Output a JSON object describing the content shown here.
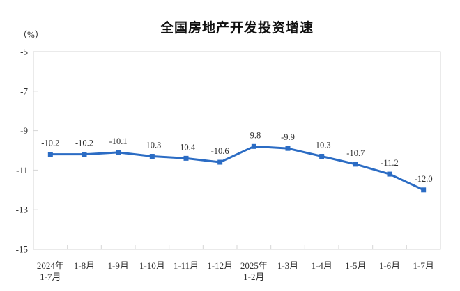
{
  "chart_data": {
    "type": "line",
    "title": "全国房地产开发投资增速",
    "unit_label": "（%）",
    "categories": [
      "2024年\n1-7月",
      "1-8月",
      "1-9月",
      "1-10月",
      "1-11月",
      "1-12月",
      "2025年\n1-2月",
      "1-3月",
      "1-4月",
      "1-5月",
      "1-6月",
      "1-7月"
    ],
    "values": [
      -10.2,
      -10.2,
      -10.1,
      -10.3,
      -10.4,
      -10.6,
      -9.8,
      -9.9,
      -10.3,
      -10.7,
      -11.2,
      -12.0
    ],
    "data_labels": [
      "-10.2",
      "-10.2",
      "-10.1",
      "-10.3",
      "-10.4",
      "-10.6",
      "-9.8",
      "-9.9",
      "-10.3",
      "-10.7",
      "-11.2",
      "-12.0"
    ],
    "ylim": [
      -15,
      -5
    ],
    "y_ticks": [
      -5,
      -7,
      -9,
      -11,
      -13,
      -15
    ],
    "y_tick_labels": [
      "-5",
      "-7",
      "-9",
      "-11",
      "-13",
      "-15"
    ],
    "grid": false,
    "legend": "none",
    "marker": "square",
    "colors": {
      "line": "#2B6CC4",
      "marker": "#2B6CC4",
      "axis": "#D6D6D6",
      "text": "#303030",
      "title": "#111111"
    }
  }
}
